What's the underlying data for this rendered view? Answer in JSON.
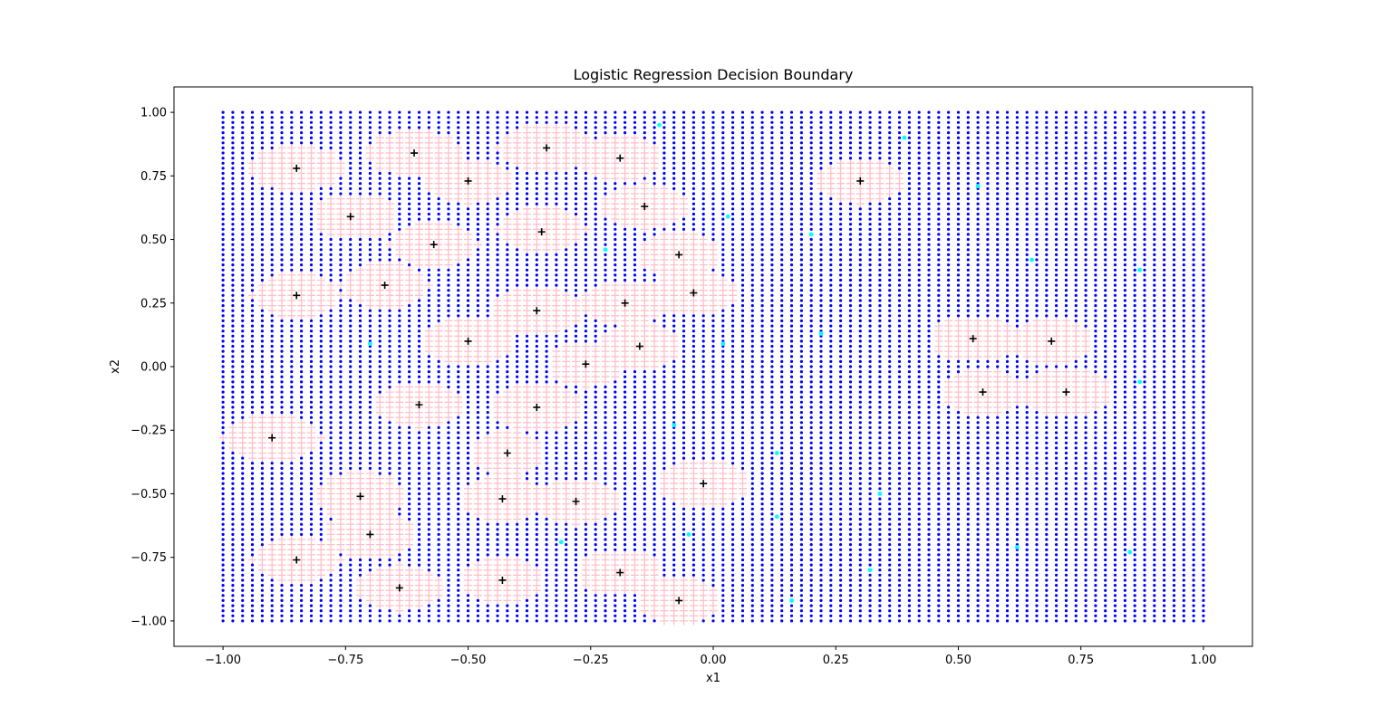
{
  "chart_data": {
    "type": "scatter",
    "title": "Logistic Regression Decision Boundary",
    "xlabel": "x1",
    "ylabel": "x2",
    "xlim": [
      -1.1,
      1.1
    ],
    "ylim": [
      -1.1,
      1.1
    ],
    "xticks": [
      -1.0,
      -0.75,
      -0.5,
      -0.25,
      0.0,
      0.25,
      0.5,
      0.75,
      1.0
    ],
    "yticks": [
      -1.0,
      -0.75,
      -0.5,
      -0.25,
      0.0,
      0.25,
      0.5,
      0.75,
      1.0
    ],
    "xtick_labels": [
      "−1.00",
      "−0.75",
      "−0.50",
      "−0.25",
      "0.00",
      "0.25",
      "0.50",
      "0.75",
      "1.00"
    ],
    "ytick_labels": [
      "−1.00",
      "−0.75",
      "−0.50",
      "−0.25",
      "0.00",
      "0.25",
      "0.50",
      "0.75",
      "1.00"
    ],
    "grid": false,
    "legend": "none",
    "background_grid": {
      "x_range": [
        -1.0,
        1.0
      ],
      "y_range": [
        -1.0,
        1.0
      ],
      "step": 0.02,
      "class_0_color": "#0000ff",
      "class_0_marker": "dot",
      "class_1_color": "#ffc0cb",
      "class_1_marker": "plus"
    },
    "positive_regions": [
      {
        "cx": -0.85,
        "cy": 0.78,
        "rx": 0.1,
        "ry": 0.09
      },
      {
        "cx": -0.61,
        "cy": 0.84,
        "rx": 0.1,
        "ry": 0.09
      },
      {
        "cx": -0.5,
        "cy": 0.73,
        "rx": 0.09,
        "ry": 0.09
      },
      {
        "cx": -0.34,
        "cy": 0.86,
        "rx": 0.1,
        "ry": 0.09
      },
      {
        "cx": -0.19,
        "cy": 0.82,
        "rx": 0.09,
        "ry": 0.09
      },
      {
        "cx": -0.73,
        "cy": 0.59,
        "rx": 0.09,
        "ry": 0.09
      },
      {
        "cx": -0.14,
        "cy": 0.63,
        "rx": 0.09,
        "ry": 0.09
      },
      {
        "cx": -0.35,
        "cy": 0.54,
        "rx": 0.09,
        "ry": 0.09
      },
      {
        "cx": -0.57,
        "cy": 0.48,
        "rx": 0.09,
        "ry": 0.09
      },
      {
        "cx": -0.07,
        "cy": 0.44,
        "rx": 0.08,
        "ry": 0.09
      },
      {
        "cx": -0.85,
        "cy": 0.28,
        "rx": 0.09,
        "ry": 0.09
      },
      {
        "cx": -0.67,
        "cy": 0.32,
        "rx": 0.09,
        "ry": 0.09
      },
      {
        "cx": -0.04,
        "cy": 0.29,
        "rx": 0.1,
        "ry": 0.08
      },
      {
        "cx": -0.18,
        "cy": 0.25,
        "rx": 0.09,
        "ry": 0.08
      },
      {
        "cx": -0.36,
        "cy": 0.22,
        "rx": 0.09,
        "ry": 0.09
      },
      {
        "cx": -0.5,
        "cy": 0.1,
        "rx": 0.09,
        "ry": 0.09
      },
      {
        "cx": -0.15,
        "cy": 0.08,
        "rx": 0.09,
        "ry": 0.09
      },
      {
        "cx": -0.26,
        "cy": 0.01,
        "rx": 0.08,
        "ry": 0.09
      },
      {
        "cx": -0.6,
        "cy": -0.15,
        "rx": 0.09,
        "ry": 0.09
      },
      {
        "cx": -0.36,
        "cy": -0.16,
        "rx": 0.09,
        "ry": 0.09
      },
      {
        "cx": -0.9,
        "cy": -0.28,
        "rx": 0.1,
        "ry": 0.09
      },
      {
        "cx": -0.42,
        "cy": -0.34,
        "rx": 0.08,
        "ry": 0.09
      },
      {
        "cx": -0.72,
        "cy": -0.51,
        "rx": 0.09,
        "ry": 0.1
      },
      {
        "cx": -0.43,
        "cy": -0.52,
        "rx": 0.09,
        "ry": 0.09
      },
      {
        "cx": -0.28,
        "cy": -0.53,
        "rx": 0.09,
        "ry": 0.09
      },
      {
        "cx": -0.7,
        "cy": -0.66,
        "rx": 0.09,
        "ry": 0.09
      },
      {
        "cx": -0.85,
        "cy": -0.76,
        "rx": 0.09,
        "ry": 0.09
      },
      {
        "cx": -0.64,
        "cy": -0.87,
        "rx": 0.09,
        "ry": 0.09
      },
      {
        "cx": -0.43,
        "cy": -0.84,
        "rx": 0.09,
        "ry": 0.09
      },
      {
        "cx": -0.19,
        "cy": -0.81,
        "rx": 0.09,
        "ry": 0.09
      },
      {
        "cx": -0.07,
        "cy": -0.92,
        "rx": 0.08,
        "ry": 0.09
      },
      {
        "cx": -0.02,
        "cy": -0.46,
        "rx": 0.09,
        "ry": 0.09
      },
      {
        "cx": 0.3,
        "cy": 0.73,
        "rx": 0.09,
        "ry": 0.09
      },
      {
        "cx": 0.53,
        "cy": 0.11,
        "rx": 0.09,
        "ry": 0.09
      },
      {
        "cx": 0.69,
        "cy": 0.1,
        "rx": 0.09,
        "ry": 0.09
      },
      {
        "cx": 0.55,
        "cy": -0.1,
        "rx": 0.09,
        "ry": 0.09
      },
      {
        "cx": 0.72,
        "cy": -0.1,
        "rx": 0.09,
        "ry": 0.09
      }
    ],
    "class_1_samples": {
      "color": "#000000",
      "marker": "plus",
      "points": [
        [
          -0.85,
          0.78
        ],
        [
          -0.61,
          0.84
        ],
        [
          -0.5,
          0.73
        ],
        [
          -0.34,
          0.86
        ],
        [
          -0.19,
          0.82
        ],
        [
          -0.74,
          0.59
        ],
        [
          -0.14,
          0.63
        ],
        [
          -0.35,
          0.53
        ],
        [
          -0.57,
          0.48
        ],
        [
          -0.07,
          0.44
        ],
        [
          -0.85,
          0.28
        ],
        [
          -0.67,
          0.32
        ],
        [
          -0.04,
          0.29
        ],
        [
          -0.18,
          0.25
        ],
        [
          -0.36,
          0.22
        ],
        [
          -0.5,
          0.1
        ],
        [
          -0.15,
          0.08
        ],
        [
          -0.26,
          0.01
        ],
        [
          -0.6,
          -0.15
        ],
        [
          -0.36,
          -0.16
        ],
        [
          -0.9,
          -0.28
        ],
        [
          -0.42,
          -0.34
        ],
        [
          -0.72,
          -0.51
        ],
        [
          -0.43,
          -0.52
        ],
        [
          -0.28,
          -0.53
        ],
        [
          -0.7,
          -0.66
        ],
        [
          -0.85,
          -0.76
        ],
        [
          -0.64,
          -0.87
        ],
        [
          -0.43,
          -0.84
        ],
        [
          -0.19,
          -0.81
        ],
        [
          -0.07,
          -0.92
        ],
        [
          -0.02,
          -0.46
        ],
        [
          0.3,
          0.73
        ],
        [
          0.53,
          0.11
        ],
        [
          0.69,
          0.1
        ],
        [
          0.55,
          -0.1
        ],
        [
          0.72,
          -0.1
        ]
      ]
    },
    "class_0_samples": {
      "color": "#00ffff",
      "marker": "dot",
      "points": [
        [
          -0.11,
          0.95
        ],
        [
          0.39,
          0.9
        ],
        [
          0.54,
          0.71
        ],
        [
          0.03,
          0.59
        ],
        [
          0.2,
          0.52
        ],
        [
          -0.22,
          0.46
        ],
        [
          0.65,
          0.42
        ],
        [
          0.87,
          0.38
        ],
        [
          -0.7,
          0.09
        ],
        [
          0.02,
          0.09
        ],
        [
          0.22,
          0.13
        ],
        [
          0.87,
          -0.06
        ],
        [
          -0.08,
          -0.23
        ],
        [
          0.13,
          -0.34
        ],
        [
          0.34,
          -0.5
        ],
        [
          0.13,
          -0.59
        ],
        [
          -0.31,
          -0.69
        ],
        [
          -0.05,
          -0.66
        ],
        [
          0.62,
          -0.71
        ],
        [
          0.85,
          -0.73
        ],
        [
          0.32,
          -0.8
        ],
        [
          0.16,
          -0.92
        ]
      ]
    }
  }
}
